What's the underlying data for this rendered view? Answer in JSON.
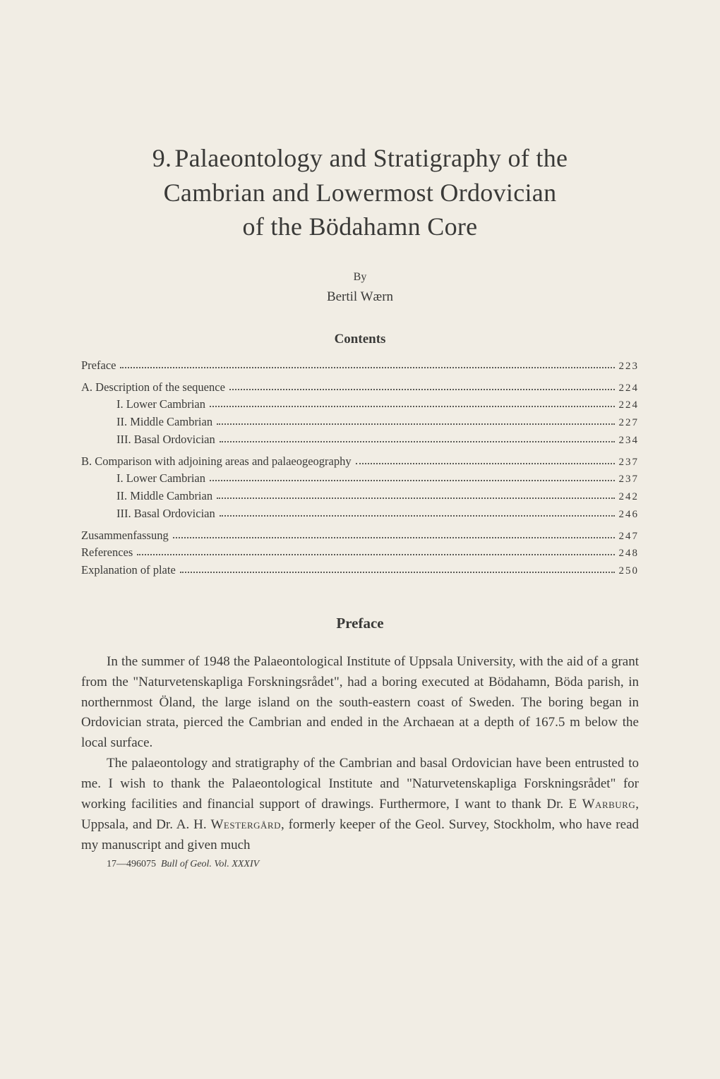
{
  "title": {
    "chapter_number": "9.",
    "line1": "Palaeontology and Stratigraphy of the",
    "line2": "Cambrian and Lowermost Ordovician",
    "line3": "of the Bödahamn Core"
  },
  "byline": {
    "by_label": "By",
    "author": "Bertil Wærn"
  },
  "contents_heading": "Contents",
  "toc": [
    {
      "label": "Preface",
      "page": "223",
      "indent": 0,
      "gap": false
    },
    {
      "label": "A. Description of the sequence",
      "page": "224",
      "indent": 0,
      "gap": true
    },
    {
      "label": "I. Lower Cambrian",
      "page": "224",
      "indent": 1,
      "gap": false
    },
    {
      "label": "II. Middle Cambrian",
      "page": "227",
      "indent": 1,
      "gap": false
    },
    {
      "label": "III. Basal Ordovician",
      "page": "234",
      "indent": 1,
      "gap": false
    },
    {
      "label": "B. Comparison with adjoining areas and palaeogeography",
      "page": "237",
      "indent": 0,
      "gap": true
    },
    {
      "label": "I. Lower Cambrian",
      "page": "237",
      "indent": 1,
      "gap": false
    },
    {
      "label": "II. Middle Cambrian",
      "page": "242",
      "indent": 1,
      "gap": false
    },
    {
      "label": "III. Basal Ordovician",
      "page": "246",
      "indent": 1,
      "gap": false
    },
    {
      "label": "Zusammenfassung",
      "page": "247",
      "indent": 0,
      "gap": true
    },
    {
      "label": "References",
      "page": "248",
      "indent": 0,
      "gap": false
    },
    {
      "label": "Explanation of plate",
      "page": "250",
      "indent": 0,
      "gap": false
    }
  ],
  "preface_heading": "Preface",
  "paragraphs": {
    "p1": "In the summer of 1948 the Palaeontological Institute of Uppsala University, with the aid of a grant from the \"Naturvetenskapliga Forskningsrådet\", had a boring executed at Bödahamn, Böda parish, in northernmost Öland, the large island on the south-eastern coast of Sweden. The boring began in Ordovician strata, pierced the Cambrian and ended in the Archaean at a depth of 167.5 m below the local surface.",
    "p2_a": "The palaeontology and stratigraphy of the Cambrian and basal Ordovician have been entrusted to me. I wish to thank the Palaeontological Institute and \"Naturvetenskapliga Forskningsrådet\" for working facilities and financial support of drawings. Furthermore, I want to thank Dr. E ",
    "p2_name1": "Warburg",
    "p2_b": ", Uppsala, and Dr. A. H. ",
    "p2_name2": "Westergård",
    "p2_c": ", formerly keeper of the Geol. Survey, Stockholm, who have read my manuscript and given much"
  },
  "footer": {
    "sig": "17—496075",
    "ref": "Bull of Geol. Vol. XXXIV"
  },
  "colors": {
    "background": "#f1ede4",
    "text": "#3a3a38",
    "dots": "#5a5a55"
  },
  "typography": {
    "title_fontsize": 36,
    "heading_fontsize": 19,
    "body_fontsize": 19,
    "toc_fontsize": 16.5,
    "footer_fontsize": 14,
    "font_family": "Georgia, 'Times New Roman', serif"
  }
}
